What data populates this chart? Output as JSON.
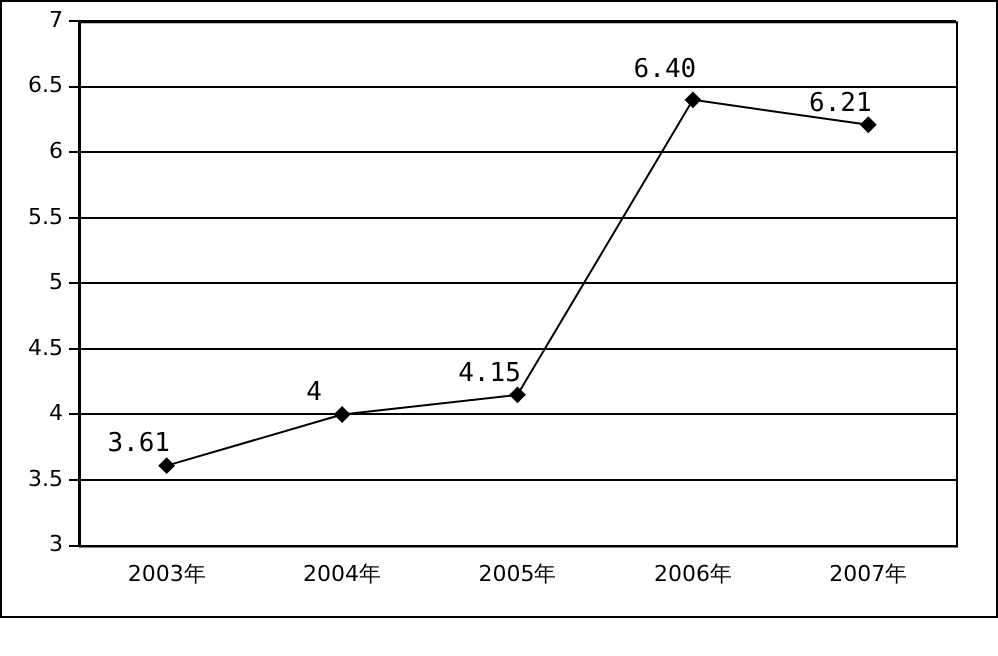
{
  "chart_data": {
    "type": "line",
    "categories": [
      "2003年",
      "2004年",
      "2005年",
      "2006年",
      "2007年"
    ],
    "series": [
      {
        "color": "#000000",
        "values": [
          3.61,
          4,
          4.15,
          6.4,
          6.21
        ],
        "value_labels": [
          "3.61",
          "4",
          "4.15",
          "6.40",
          "6.21"
        ]
      }
    ],
    "ylim": [
      3,
      7
    ],
    "yticks": [
      3,
      3.5,
      4,
      4.5,
      5,
      5.5,
      6,
      6.5,
      7
    ],
    "grid": "y",
    "legend": false,
    "marker": "diamond",
    "line_style": "solid"
  }
}
